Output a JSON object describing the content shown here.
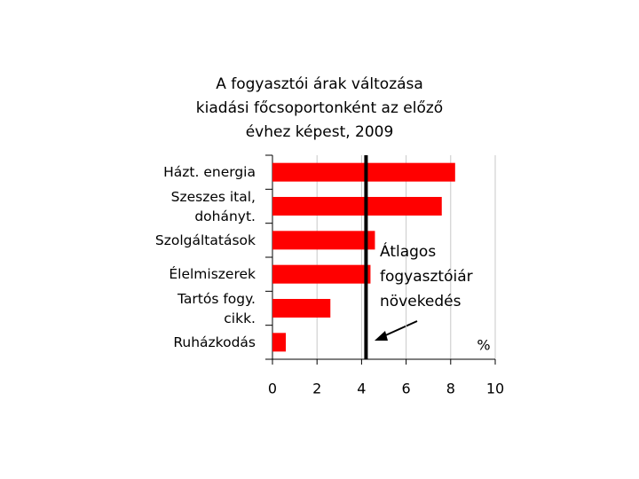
{
  "chart_data": {
    "type": "bar",
    "orientation": "horizontal",
    "title": [
      "A fogyasztói árak változása",
      "kiadási főcsoportonként az előző",
      "évhez képest, 2009"
    ],
    "categories": [
      "Házt. energia",
      "Szeszes ital,\ndohányt.",
      "Szolgáltatások",
      "Élelmiszerek",
      "Tartós fogy.\ncikk.",
      "Ruházkodás"
    ],
    "values": [
      8.2,
      7.6,
      4.6,
      4.4,
      2.6,
      0.6
    ],
    "color": "#ff0000",
    "xlim": [
      0,
      10
    ],
    "xticks": [
      0,
      2,
      4,
      6,
      8,
      10
    ],
    "grid": true,
    "x_unit_label": "%",
    "reference_line": {
      "value": 4.2,
      "label": "Átlagos\nfogyasztóiár\nnövekedés"
    }
  }
}
